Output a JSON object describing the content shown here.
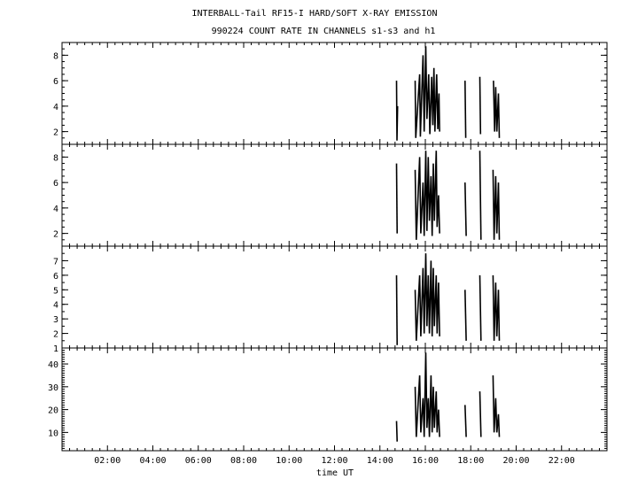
{
  "chart_data": {
    "type": "line",
    "title": "INTERBALL-Tail RF15-I HARD/SOFT X-RAY EMISSION",
    "subtitle": "990224  COUNT RATE IN CHANNELS s1-s3 and h1",
    "xlabel": "time UT",
    "xlim": [
      0,
      24
    ],
    "x_ticks": [
      "02:00",
      "04:00",
      "06:00",
      "08:00",
      "10:00",
      "12:00",
      "14:00",
      "16:00",
      "18:00",
      "20:00",
      "22:00"
    ],
    "panels": [
      {
        "name": "s1",
        "ylim": [
          1,
          9
        ],
        "y_ticks": [
          "2",
          "4",
          "6",
          "8"
        ],
        "values": [
          [
            14.73,
            6.0
          ],
          [
            14.75,
            1.3
          ],
          [
            14.78,
            4.0
          ],
          [
            15.55,
            6.0
          ],
          [
            15.58,
            1.5
          ],
          [
            15.75,
            6.5
          ],
          [
            15.78,
            1.6
          ],
          [
            15.9,
            8.0
          ],
          [
            15.95,
            2.0
          ],
          [
            16.02,
            8.7
          ],
          [
            16.07,
            3.0
          ],
          [
            16.15,
            6.5
          ],
          [
            16.2,
            1.8
          ],
          [
            16.28,
            6.3
          ],
          [
            16.33,
            2.5
          ],
          [
            16.38,
            7.0
          ],
          [
            16.42,
            2.0
          ],
          [
            16.5,
            6.5
          ],
          [
            16.55,
            2.2
          ],
          [
            16.6,
            5.0
          ],
          [
            16.63,
            2.0
          ],
          [
            17.75,
            6.0
          ],
          [
            17.78,
            1.5
          ],
          [
            18.4,
            6.3
          ],
          [
            18.43,
            1.8
          ],
          [
            19.0,
            6.0
          ],
          [
            19.05,
            2.0
          ],
          [
            19.1,
            5.5
          ],
          [
            19.15,
            2.0
          ],
          [
            19.22,
            5.0
          ],
          [
            19.26,
            1.5
          ]
        ]
      },
      {
        "name": "s2",
        "ylim": [
          1,
          9
        ],
        "y_ticks": [
          "2",
          "4",
          "6",
          "8"
        ],
        "values": [
          [
            14.73,
            7.5
          ],
          [
            14.76,
            2.0
          ],
          [
            15.55,
            7.0
          ],
          [
            15.6,
            1.5
          ],
          [
            15.75,
            8.0
          ],
          [
            15.8,
            2.0
          ],
          [
            15.9,
            6.0
          ],
          [
            15.95,
            1.8
          ],
          [
            16.02,
            8.5
          ],
          [
            16.07,
            2.2
          ],
          [
            16.13,
            8.0
          ],
          [
            16.18,
            3.0
          ],
          [
            16.25,
            6.5
          ],
          [
            16.3,
            1.8
          ],
          [
            16.35,
            7.5
          ],
          [
            16.4,
            3.0
          ],
          [
            16.48,
            8.5
          ],
          [
            16.52,
            2.5
          ],
          [
            16.58,
            5.0
          ],
          [
            16.63,
            2.0
          ],
          [
            17.75,
            6.0
          ],
          [
            17.8,
            1.8
          ],
          [
            18.4,
            8.5
          ],
          [
            18.45,
            1.5
          ],
          [
            18.98,
            7.0
          ],
          [
            19.03,
            1.5
          ],
          [
            19.1,
            6.5
          ],
          [
            19.15,
            2.0
          ],
          [
            19.22,
            6.0
          ],
          [
            19.26,
            1.5
          ]
        ]
      },
      {
        "name": "s3",
        "ylim": [
          1,
          8
        ],
        "y_ticks": [
          "1",
          "2",
          "3",
          "4",
          "5",
          "6",
          "7"
        ],
        "values": [
          [
            14.73,
            6.0
          ],
          [
            14.76,
            1.2
          ],
          [
            15.55,
            5.0
          ],
          [
            15.6,
            1.5
          ],
          [
            15.75,
            6.0
          ],
          [
            15.8,
            1.8
          ],
          [
            15.9,
            6.5
          ],
          [
            15.95,
            2.0
          ],
          [
            16.02,
            7.5
          ],
          [
            16.07,
            2.5
          ],
          [
            16.13,
            6.0
          ],
          [
            16.18,
            2.0
          ],
          [
            16.25,
            7.0
          ],
          [
            16.3,
            1.8
          ],
          [
            16.35,
            6.5
          ],
          [
            16.4,
            2.5
          ],
          [
            16.48,
            6.0
          ],
          [
            16.52,
            2.0
          ],
          [
            16.58,
            5.5
          ],
          [
            16.63,
            1.8
          ],
          [
            17.75,
            5.0
          ],
          [
            17.8,
            1.5
          ],
          [
            18.4,
            6.0
          ],
          [
            18.45,
            1.5
          ],
          [
            18.98,
            6.0
          ],
          [
            19.03,
            1.5
          ],
          [
            19.1,
            5.5
          ],
          [
            19.15,
            1.8
          ],
          [
            19.22,
            5.0
          ],
          [
            19.26,
            1.5
          ]
        ]
      },
      {
        "name": "h1",
        "ylim": [
          2,
          47
        ],
        "y_ticks": [
          "10",
          "20",
          "30",
          "40"
        ],
        "values": [
          [
            14.73,
            15
          ],
          [
            14.76,
            6
          ],
          [
            15.55,
            30
          ],
          [
            15.6,
            8
          ],
          [
            15.75,
            35
          ],
          [
            15.8,
            10
          ],
          [
            15.9,
            25
          ],
          [
            15.95,
            8
          ],
          [
            16.02,
            45
          ],
          [
            16.07,
            12
          ],
          [
            16.13,
            25
          ],
          [
            16.18,
            8
          ],
          [
            16.25,
            35
          ],
          [
            16.3,
            10
          ],
          [
            16.35,
            30
          ],
          [
            16.4,
            12
          ],
          [
            16.48,
            28
          ],
          [
            16.52,
            10
          ],
          [
            16.58,
            20
          ],
          [
            16.63,
            8
          ],
          [
            17.75,
            22
          ],
          [
            17.8,
            8
          ],
          [
            18.4,
            28
          ],
          [
            18.45,
            8
          ],
          [
            18.98,
            35
          ],
          [
            19.03,
            10
          ],
          [
            19.1,
            25
          ],
          [
            19.15,
            10
          ],
          [
            19.22,
            18
          ],
          [
            19.26,
            8
          ]
        ]
      }
    ]
  }
}
